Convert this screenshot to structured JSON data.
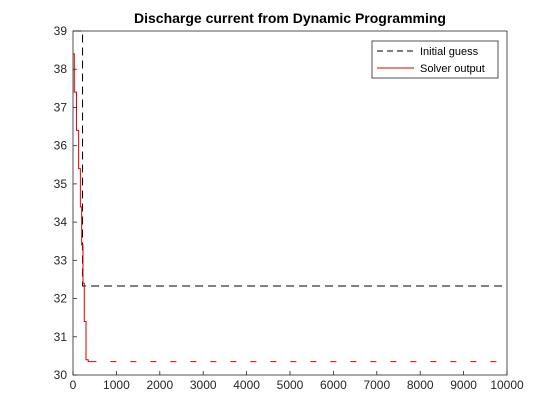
{
  "chart_data": {
    "type": "line",
    "title": "Discharge current from Dynamic Programming",
    "xlabel": "",
    "ylabel": "",
    "xlim": [
      0,
      10000
    ],
    "ylim": [
      30,
      39
    ],
    "xticks": [
      0,
      1000,
      2000,
      3000,
      4000,
      5000,
      6000,
      7000,
      8000,
      9000,
      10000
    ],
    "yticks": [
      30,
      31,
      32,
      33,
      34,
      35,
      36,
      37,
      38,
      39
    ],
    "grid": false,
    "legend_position": "top-right",
    "series": [
      {
        "name": "Initial guess",
        "color": "#000000",
        "line_style": "dashed",
        "x": [
          0,
          220,
          220,
          10000
        ],
        "y": [
          39,
          39,
          32.33,
          32.33
        ]
      },
      {
        "name": "Solver output",
        "color": "#e00000",
        "line_style": "solid-then-dashed",
        "solid_until_x": 400,
        "x": [
          0,
          30,
          30,
          80,
          80,
          130,
          130,
          170,
          170,
          200,
          200,
          230,
          230,
          260,
          260,
          300,
          300,
          350,
          350,
          400,
          10000
        ],
        "y": [
          38.4,
          38.4,
          37.4,
          37.4,
          36.4,
          36.4,
          35.4,
          35.4,
          34.4,
          34.4,
          33.4,
          33.4,
          32.4,
          32.4,
          31.4,
          31.4,
          30.4,
          30.4,
          30.35,
          30.35,
          30.35
        ]
      }
    ]
  }
}
